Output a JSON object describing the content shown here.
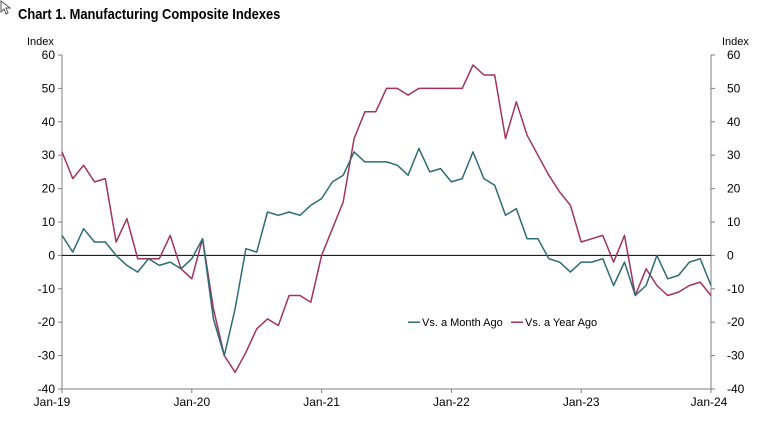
{
  "title": "Chart 1. Manufacturing Composite Indexes",
  "chart_data": {
    "type": "line",
    "title": "Chart 1. Manufacturing Composite Indexes",
    "ylabel_left": "Index",
    "ylabel_right": "Index",
    "ylim": [
      -40,
      60
    ],
    "yticks": [
      -40,
      -30,
      -20,
      -10,
      0,
      10,
      20,
      30,
      40,
      50,
      60
    ],
    "xlim": [
      "Jan-19",
      "Jan-24"
    ],
    "xticks": [
      "Jan-19",
      "Jan-20",
      "Jan-21",
      "Jan-22",
      "Jan-23",
      "Jan-24"
    ],
    "legend_position": "lower-right",
    "grid": false,
    "series": [
      {
        "name": "Vs. a Month Ago",
        "color": "#2e6b78",
        "values": [
          6,
          1,
          8,
          4,
          4,
          0,
          -3,
          -5,
          -1,
          -3,
          -2,
          -4,
          -1,
          5,
          -19,
          -30,
          -16,
          2,
          1,
          13,
          12,
          13,
          12,
          15,
          17,
          22,
          24,
          31,
          28,
          28,
          28,
          27,
          24,
          32,
          25,
          26,
          22,
          23,
          31,
          23,
          21,
          12,
          14,
          5,
          5,
          -1,
          -2,
          -5,
          -2,
          -2,
          -1,
          -9,
          -2,
          -12,
          -9,
          0,
          -7,
          -6,
          -2,
          -1,
          -9
        ]
      },
      {
        "name": "Vs. a Year Ago",
        "color": "#a3325d",
        "values": [
          31,
          23,
          27,
          22,
          23,
          4,
          11,
          -1,
          -1,
          -1,
          6,
          -4,
          -7,
          5,
          -16,
          -30,
          -35,
          -29,
          -22,
          -19,
          -21,
          -12,
          -12,
          -14,
          0,
          8,
          16,
          35,
          43,
          43,
          50,
          50,
          48,
          50,
          50,
          50,
          50,
          50,
          57,
          54,
          54,
          35,
          46,
          36,
          30,
          24,
          19,
          15,
          4,
          5,
          6,
          -2,
          6,
          -12,
          -4,
          -9,
          -12,
          -11,
          -9,
          -8,
          -12
        ]
      }
    ]
  }
}
